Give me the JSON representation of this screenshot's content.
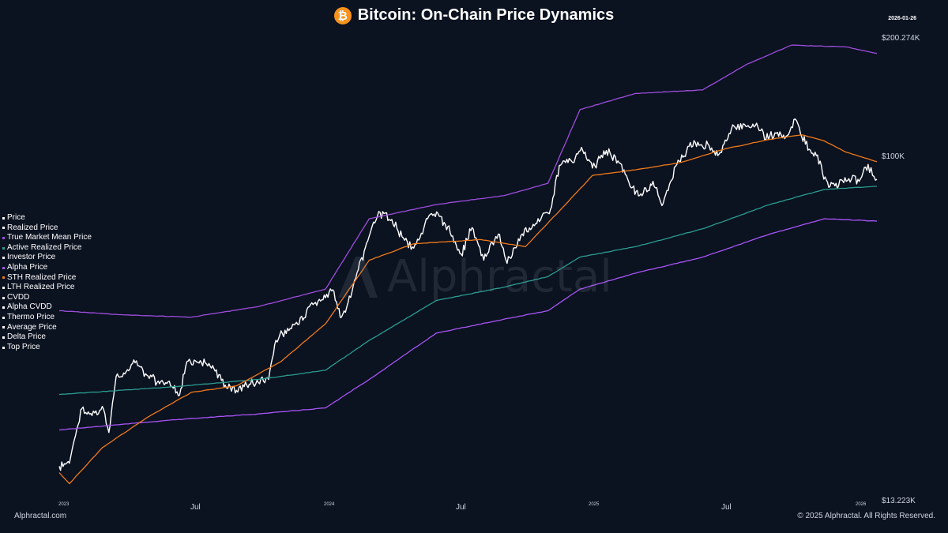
{
  "header": {
    "title": "Bitcoin: On-Chain Price Dynamics",
    "logo_glyph": "₿",
    "logo_color": "#f7931a",
    "date": "2026-01-26"
  },
  "watermark": {
    "text": "Alphractal"
  },
  "footer": {
    "left": "Alphractal.com",
    "right": "© 2025 Alphractal. All Rights Reserved."
  },
  "axis_labels": {
    "y_top": "$200.274K",
    "y_mid": "$100K",
    "y_bottom": "$13.223K",
    "x": [
      "2023",
      "Jul",
      "2024",
      "Jul",
      "2025",
      "Jul",
      "2026"
    ]
  },
  "legend": [
    {
      "label": "Price",
      "color": "#ffffff"
    },
    {
      "label": "Realized Price",
      "color": "#ffffff"
    },
    {
      "label": "True Market Mean Price",
      "color": "#9d4edd"
    },
    {
      "label": "Active Realized Price",
      "color": "#2a9d8f"
    },
    {
      "label": "Investor Price",
      "color": "#ffffff"
    },
    {
      "label": "Alpha Price",
      "color": "#a855f7"
    },
    {
      "label": "STH Realized Price",
      "color": "#f07a1a"
    },
    {
      "label": "LTH Realized Price",
      "color": "#ffffff"
    },
    {
      "label": "CVDD",
      "color": "#ffffff"
    },
    {
      "label": "Alpha CVDD",
      "color": "#ffffff"
    },
    {
      "label": "Thermo Price",
      "color": "#ffffff"
    },
    {
      "label": "Average Price",
      "color": "#ffffff"
    },
    {
      "label": "Delta Price",
      "color": "#ffffff"
    },
    {
      "label": "Top Price",
      "color": "#ffffff"
    }
  ],
  "chart_data": {
    "type": "line",
    "yscale": "log",
    "ylim": [
      13223,
      200274
    ],
    "xlim": [
      "2023-01-01",
      "2026-01-26"
    ],
    "yticks": [
      13223,
      100000,
      200274
    ],
    "xticks": [
      "2023-01-01",
      "2023-07-01",
      "2024-01-01",
      "2024-07-01",
      "2025-01-01",
      "2025-07-01",
      "2026-01-01"
    ],
    "grid": false,
    "legend_position": "left",
    "series": [
      {
        "name": "Price",
        "color": "#ffffff",
        "x": [
          "2023-01-01",
          "2023-01-15",
          "2023-02-01",
          "2023-02-15",
          "2023-03-01",
          "2023-03-10",
          "2023-03-20",
          "2023-04-01",
          "2023-04-15",
          "2023-05-01",
          "2023-05-15",
          "2023-06-01",
          "2023-06-15",
          "2023-06-25",
          "2023-07-15",
          "2023-08-01",
          "2023-08-20",
          "2023-09-01",
          "2023-09-15",
          "2023-10-01",
          "2023-10-15",
          "2023-10-25",
          "2023-11-10",
          "2023-12-01",
          "2023-12-15",
          "2024-01-01",
          "2024-01-11",
          "2024-01-23",
          "2024-02-01",
          "2024-02-15",
          "2024-02-28",
          "2024-03-05",
          "2024-03-14",
          "2024-04-01",
          "2024-04-15",
          "2024-05-01",
          "2024-05-20",
          "2024-06-05",
          "2024-06-20",
          "2024-07-05",
          "2024-07-20",
          "2024-08-05",
          "2024-08-25",
          "2024-09-06",
          "2024-09-25",
          "2024-10-15",
          "2024-10-29",
          "2024-11-06",
          "2024-11-13",
          "2024-11-22",
          "2024-12-05",
          "2024-12-17",
          "2025-01-01",
          "2025-01-20",
          "2025-02-05",
          "2025-02-25",
          "2025-03-10",
          "2025-03-25",
          "2025-04-08",
          "2025-04-25",
          "2025-05-10",
          "2025-05-22",
          "2025-06-10",
          "2025-06-22",
          "2025-07-14",
          "2025-07-25",
          "2025-08-14",
          "2025-08-25",
          "2025-09-10",
          "2025-09-25",
          "2025-10-06",
          "2025-10-10",
          "2025-10-20",
          "2025-11-04",
          "2025-11-21",
          "2025-12-01",
          "2025-12-15",
          "2025-12-31",
          "2026-01-14",
          "2026-01-20",
          "2026-01-26"
        ],
        "y": [
          16600,
          16900,
          23200,
          22300,
          23500,
          20200,
          28000,
          28400,
          30300,
          28200,
          27000,
          27200,
          25100,
          30500,
          30300,
          29300,
          26100,
          25800,
          26600,
          27000,
          27500,
          34500,
          37000,
          38800,
          42500,
          44200,
          46300,
          39500,
          43000,
          52000,
          61500,
          67000,
          73000,
          69700,
          63000,
          59000,
          70000,
          71000,
          64500,
          57000,
          66500,
          55000,
          64000,
          54000,
          63500,
          68000,
          72500,
          75000,
          90000,
          98000,
          97000,
          106000,
          94000,
          104000,
          98000,
          84000,
          80000,
          87000,
          76500,
          95000,
          103500,
          109000,
          107000,
          101000,
          120000,
          118000,
          122000,
          111000,
          115000,
          113500,
          125000,
          121000,
          108000,
          101000,
          84000,
          86000,
          87000,
          88000,
          96000,
          90000,
          88000
        ]
      },
      {
        "name": "True Market Mean Price",
        "color": "#9d4edd",
        "x": [
          "2023-01-01",
          "2023-04-01",
          "2023-07-01",
          "2023-10-01",
          "2024-01-01",
          "2024-03-01",
          "2024-06-01",
          "2024-09-01",
          "2024-11-01",
          "2024-12-15",
          "2025-03-01",
          "2025-06-01",
          "2025-08-01",
          "2025-10-01",
          "2025-12-15",
          "2026-01-26"
        ],
        "y": [
          41000,
          40000,
          39500,
          42000,
          46500,
          70000,
          76000,
          80000,
          86000,
          132000,
          145000,
          148000,
          172000,
          192000,
          190000,
          183000
        ]
      },
      {
        "name": "Active Realized Price",
        "color": "#2a9d8f",
        "x": [
          "2023-01-01",
          "2023-06-01",
          "2023-10-01",
          "2024-01-01",
          "2024-03-01",
          "2024-06-01",
          "2024-09-01",
          "2024-11-01",
          "2024-12-15",
          "2025-03-01",
          "2025-06-01",
          "2025-09-01",
          "2025-11-15",
          "2026-01-26"
        ],
        "y": [
          25200,
          26300,
          27500,
          29000,
          34500,
          43500,
          47000,
          50000,
          56000,
          59500,
          66000,
          76000,
          83000,
          84500
        ]
      },
      {
        "name": "Alpha Price",
        "color": "#a855f7",
        "x": [
          "2023-01-01",
          "2023-06-01",
          "2023-10-01",
          "2024-01-01",
          "2024-03-01",
          "2024-06-01",
          "2024-09-01",
          "2024-11-01",
          "2024-12-15",
          "2025-03-01",
          "2025-06-01",
          "2025-09-01",
          "2025-11-15",
          "2026-01-26"
        ],
        "y": [
          20500,
          21700,
          22500,
          23300,
          27500,
          36000,
          39000,
          41000,
          46500,
          51000,
          56000,
          64000,
          70000,
          69000
        ]
      },
      {
        "name": "STH Realized Price",
        "color": "#f07a1a",
        "x": [
          "2023-01-01",
          "2023-01-15",
          "2023-03-01",
          "2023-05-01",
          "2023-07-01",
          "2023-09-01",
          "2023-11-01",
          "2024-01-01",
          "2024-03-01",
          "2024-05-01",
          "2024-08-01",
          "2024-10-01",
          "2024-11-25",
          "2025-01-01",
          "2025-03-01",
          "2025-05-01",
          "2025-07-01",
          "2025-09-01",
          "2025-10-15",
          "2025-11-15",
          "2025-12-15",
          "2026-01-26"
        ],
        "y": [
          16000,
          15000,
          18500,
          22000,
          25500,
          26500,
          30500,
          38000,
          55000,
          60500,
          62000,
          59500,
          76000,
          90000,
          93000,
          97000,
          105000,
          111000,
          114000,
          110000,
          103000,
          97500
        ]
      }
    ]
  }
}
